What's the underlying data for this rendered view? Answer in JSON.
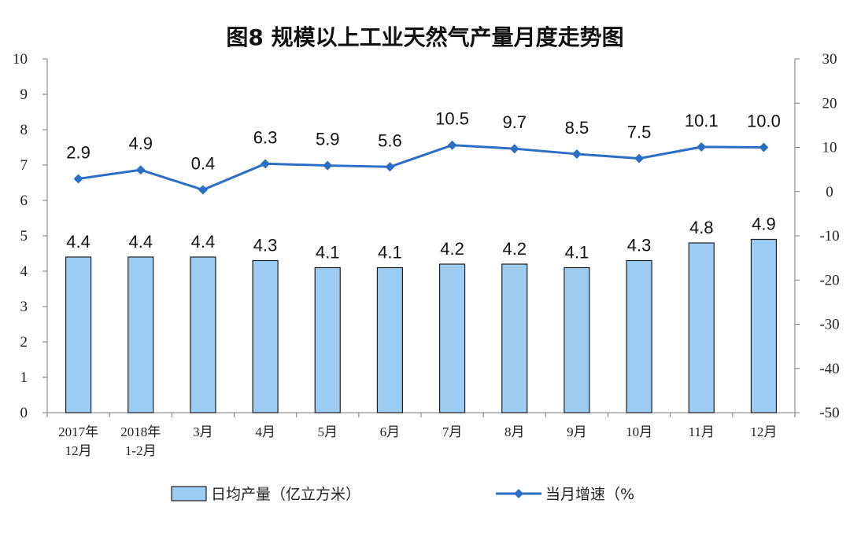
{
  "chart_data": {
    "type": "bar",
    "title": "图8  规模以上工业天然气产量月度走势图",
    "categories": [
      [
        "2017年",
        "12月"
      ],
      [
        "2018年",
        "1-2月"
      ],
      [
        "3月"
      ],
      [
        "4月"
      ],
      [
        "5月"
      ],
      [
        "6月"
      ],
      [
        "7月"
      ],
      [
        "8月"
      ],
      [
        "9月"
      ],
      [
        "10月"
      ],
      [
        "11月"
      ],
      [
        "12月"
      ]
    ],
    "series": [
      {
        "name": "日均产量（亿立方米）",
        "type": "bar",
        "axis": "left",
        "values": [
          4.4,
          4.4,
          4.4,
          4.3,
          4.1,
          4.1,
          4.2,
          4.2,
          4.1,
          4.3,
          4.8,
          4.9
        ],
        "labels": [
          "4.4",
          "4.4",
          "4.4",
          "4.3",
          "4.1",
          "4.1",
          "4.2",
          "4.2",
          "4.1",
          "4.3",
          "4.8",
          "4.9"
        ],
        "color": "#9DCCF3",
        "stroke": "#1F1F1F"
      },
      {
        "name": "当月增速（%",
        "type": "line",
        "axis": "right",
        "values": [
          2.9,
          4.9,
          0.4,
          6.3,
          5.9,
          5.6,
          10.5,
          9.7,
          8.5,
          7.5,
          10.1,
          10.0
        ],
        "labels": [
          "2.9",
          "4.9",
          "0.4",
          "6.3",
          "5.9",
          "5.6",
          "10.5",
          "9.7",
          "8.5",
          "7.5",
          "10.1",
          "10.0"
        ],
        "color": "#2A6EC6"
      }
    ],
    "ylim_left": [
      0,
      10
    ],
    "yticks_left": [
      "0",
      "1",
      "2",
      "3",
      "4",
      "5",
      "6",
      "7",
      "8",
      "9",
      "10"
    ],
    "ylim_right": [
      -50,
      30
    ],
    "yticks_right": [
      "-50",
      "-40",
      "-30",
      "-20",
      "-10",
      "0",
      "10",
      "20",
      "30"
    ],
    "grid": false,
    "legend_position": "bottom"
  }
}
